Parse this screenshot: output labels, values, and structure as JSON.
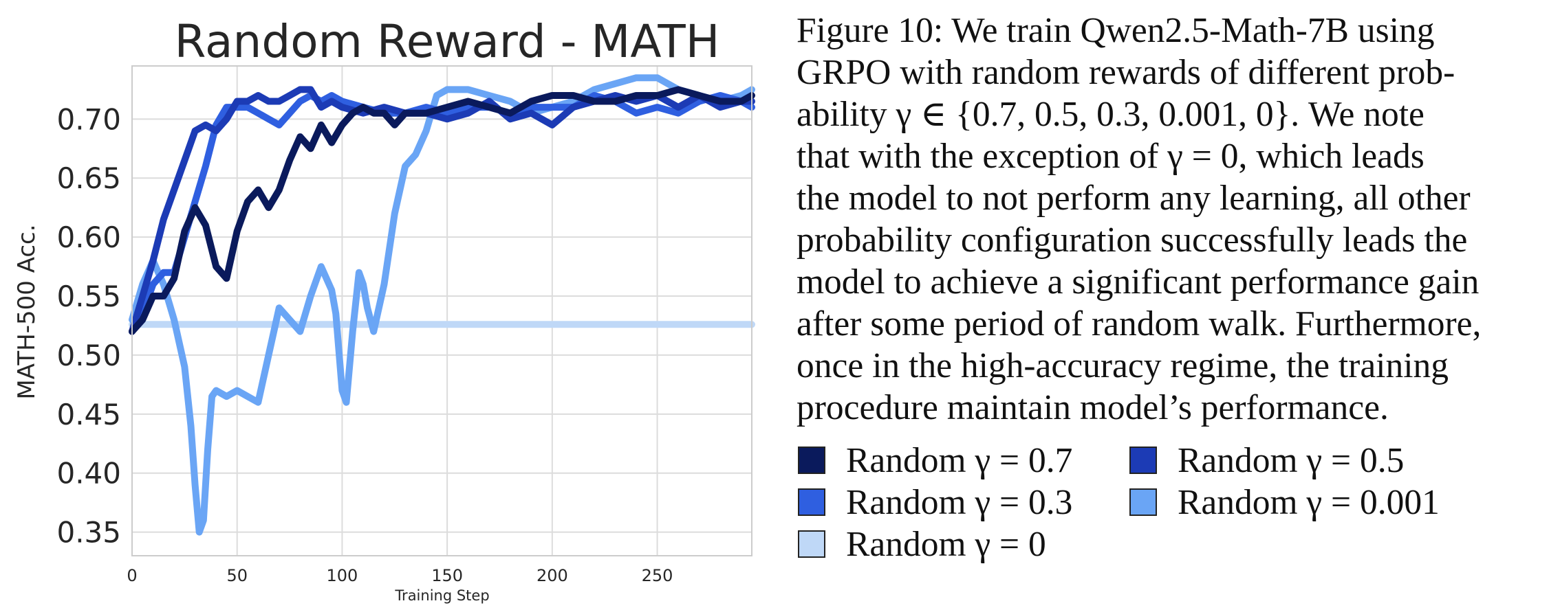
{
  "caption": {
    "lines": [
      "Figure 10: We train Qwen2.5-Math-7B using",
      "GRPO with random rewards of different prob-",
      "ability γ ∈ {0.7, 0.5, 0.3, 0.001, 0}.  We note",
      "that with the exception of γ = 0, which leads",
      "the model to not perform any learning, all other",
      "probability configuration successfully leads the",
      "model to achieve a significant performance gain",
      "after some period of random walk. Furthermore,",
      "once in the high-accuracy regime, the training",
      "procedure maintain model’s performance."
    ]
  },
  "legend": {
    "items": [
      {
        "label": "Random γ = 0.7",
        "color": "#0a1a5c"
      },
      {
        "label": "Random γ = 0.5",
        "color": "#1c3bb5"
      },
      {
        "label": "Random γ = 0.3",
        "color": "#2f5fe0"
      },
      {
        "label": "Random γ = 0.001",
        "color": "#6aa5f5"
      },
      {
        "label": "Random γ = 0",
        "color": "#bfd8f7"
      }
    ]
  },
  "chart_data": {
    "type": "line",
    "title": "Random Reward - MATH",
    "xlabel": "Training Step",
    "ylabel": "MATH-500 Acc.",
    "xlim": [
      0,
      295
    ],
    "ylim": [
      0.33,
      0.745
    ],
    "xticks": [
      0,
      50,
      100,
      150,
      200,
      250
    ],
    "yticks": [
      0.35,
      0.4,
      0.45,
      0.5,
      0.55,
      0.6,
      0.65,
      0.7
    ],
    "xtick_labels": [
      "0",
      "50",
      "100",
      "150",
      "200",
      "250"
    ],
    "ytick_labels": [
      "0.35",
      "0.40",
      "0.45",
      "0.50",
      "0.55",
      "0.60",
      "0.65",
      "0.70"
    ],
    "grid": true,
    "series": [
      {
        "name": "Random γ = 0.7",
        "color": "#0a1a5c",
        "x": [
          0,
          5,
          10,
          15,
          20,
          25,
          30,
          35,
          40,
          45,
          50,
          55,
          60,
          65,
          70,
          75,
          80,
          85,
          90,
          95,
          100,
          105,
          110,
          115,
          120,
          125,
          130,
          140,
          150,
          160,
          170,
          180,
          190,
          200,
          210,
          220,
          230,
          240,
          250,
          260,
          270,
          280,
          290,
          295
        ],
        "y": [
          0.52,
          0.53,
          0.55,
          0.55,
          0.565,
          0.605,
          0.625,
          0.61,
          0.575,
          0.565,
          0.605,
          0.63,
          0.64,
          0.625,
          0.64,
          0.665,
          0.685,
          0.675,
          0.695,
          0.68,
          0.695,
          0.705,
          0.71,
          0.705,
          0.705,
          0.695,
          0.705,
          0.705,
          0.71,
          0.715,
          0.71,
          0.705,
          0.715,
          0.72,
          0.72,
          0.715,
          0.715,
          0.72,
          0.72,
          0.725,
          0.72,
          0.715,
          0.715,
          0.72
        ]
      },
      {
        "name": "Random γ = 0.5",
        "color": "#1c3bb5",
        "x": [
          0,
          5,
          10,
          15,
          20,
          25,
          30,
          35,
          40,
          45,
          50,
          55,
          60,
          65,
          70,
          75,
          80,
          85,
          90,
          95,
          100,
          110,
          120,
          130,
          140,
          150,
          160,
          170,
          180,
          190,
          200,
          210,
          220,
          230,
          240,
          250,
          260,
          270,
          280,
          290,
          295
        ],
        "y": [
          0.52,
          0.55,
          0.58,
          0.615,
          0.64,
          0.665,
          0.69,
          0.695,
          0.69,
          0.7,
          0.715,
          0.715,
          0.72,
          0.715,
          0.715,
          0.72,
          0.725,
          0.725,
          0.71,
          0.715,
          0.71,
          0.705,
          0.71,
          0.705,
          0.705,
          0.7,
          0.705,
          0.715,
          0.7,
          0.705,
          0.695,
          0.71,
          0.715,
          0.72,
          0.715,
          0.72,
          0.71,
          0.72,
          0.71,
          0.715,
          0.715
        ]
      },
      {
        "name": "Random γ = 0.3",
        "color": "#2f5fe0",
        "x": [
          0,
          5,
          10,
          15,
          20,
          25,
          30,
          35,
          40,
          45,
          50,
          55,
          60,
          65,
          70,
          75,
          80,
          85,
          90,
          95,
          100,
          110,
          120,
          130,
          140,
          150,
          160,
          170,
          180,
          190,
          200,
          210,
          220,
          230,
          240,
          250,
          260,
          270,
          280,
          290,
          295
        ],
        "y": [
          0.52,
          0.535,
          0.56,
          0.57,
          0.57,
          0.6,
          0.63,
          0.66,
          0.695,
          0.71,
          0.71,
          0.71,
          0.705,
          0.7,
          0.695,
          0.705,
          0.715,
          0.72,
          0.715,
          0.72,
          0.715,
          0.71,
          0.705,
          0.705,
          0.71,
          0.705,
          0.71,
          0.71,
          0.705,
          0.71,
          0.71,
          0.71,
          0.72,
          0.715,
          0.705,
          0.71,
          0.705,
          0.715,
          0.72,
          0.715,
          0.71
        ]
      },
      {
        "name": "Random γ = 0.001",
        "color": "#6aa5f5",
        "x": [
          0,
          5,
          10,
          15,
          20,
          25,
          28,
          30,
          32,
          34,
          36,
          38,
          40,
          45,
          50,
          55,
          60,
          65,
          70,
          75,
          80,
          85,
          90,
          95,
          97,
          100,
          102,
          105,
          108,
          110,
          112,
          115,
          120,
          125,
          130,
          135,
          140,
          145,
          150,
          160,
          170,
          180,
          190,
          200,
          210,
          220,
          230,
          240,
          250,
          260,
          270,
          280,
          290,
          295
        ],
        "y": [
          0.53,
          0.56,
          0.58,
          0.56,
          0.53,
          0.49,
          0.44,
          0.39,
          0.35,
          0.36,
          0.42,
          0.465,
          0.47,
          0.465,
          0.47,
          0.465,
          0.46,
          0.5,
          0.54,
          0.53,
          0.52,
          0.55,
          0.575,
          0.555,
          0.535,
          0.47,
          0.46,
          0.52,
          0.57,
          0.56,
          0.54,
          0.52,
          0.56,
          0.62,
          0.66,
          0.67,
          0.69,
          0.72,
          0.725,
          0.725,
          0.72,
          0.715,
          0.705,
          0.71,
          0.715,
          0.725,
          0.73,
          0.735,
          0.735,
          0.725,
          0.72,
          0.715,
          0.72,
          0.725
        ]
      },
      {
        "name": "Random γ = 0",
        "color": "#bfd8f7",
        "x": [
          0,
          295
        ],
        "y": [
          0.526,
          0.526
        ]
      }
    ]
  }
}
